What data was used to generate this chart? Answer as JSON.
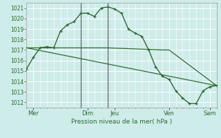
{
  "background_color": "#ceecea",
  "grid_color": "#ffffff",
  "line_color": "#2d6b2d",
  "title": "Pression niveau de la mer( hPa )",
  "ylim": [
    1011.5,
    1021.5
  ],
  "yticks": [
    1012,
    1013,
    1014,
    1015,
    1016,
    1017,
    1018,
    1019,
    1020,
    1021
  ],
  "xlim": [
    0,
    14
  ],
  "xtick_labels": [
    "Mer",
    "Dim",
    "Jeu",
    "Ven",
    "Sam"
  ],
  "xtick_positions": [
    0.5,
    4.5,
    6.5,
    10.5,
    13.5
  ],
  "vline_positions": [
    4.0,
    6.0
  ],
  "vline_color": "#666666",
  "line1_x": [
    0.0,
    0.5,
    1.0,
    1.5,
    2.0,
    2.5,
    3.0,
    3.5,
    4.0,
    4.5,
    5.0,
    5.5,
    6.0,
    6.5,
    7.0,
    7.5,
    8.0,
    8.5,
    9.0,
    9.5,
    10.0,
    10.5,
    11.0,
    11.5,
    12.0,
    12.5,
    13.0,
    13.5,
    14.0
  ],
  "line1_y": [
    1015.2,
    1016.3,
    1017.2,
    1017.3,
    1017.2,
    1018.8,
    1019.4,
    1019.7,
    1020.5,
    1020.5,
    1020.2,
    1021.0,
    1021.1,
    1020.9,
    1020.5,
    1019.0,
    1018.6,
    1018.3,
    1017.0,
    1015.4,
    1014.5,
    1014.2,
    1013.1,
    1012.4,
    1011.9,
    1011.9,
    1013.1,
    1013.5,
    1013.6
  ],
  "line2_x": [
    0.0,
    4.0,
    6.0,
    10.0,
    10.5,
    14.0
  ],
  "line2_y": [
    1017.2,
    1017.2,
    1017.2,
    1017.0,
    1017.0,
    1013.6
  ],
  "line3_x": [
    0.0,
    14.0
  ],
  "line3_y": [
    1017.2,
    1013.6
  ]
}
